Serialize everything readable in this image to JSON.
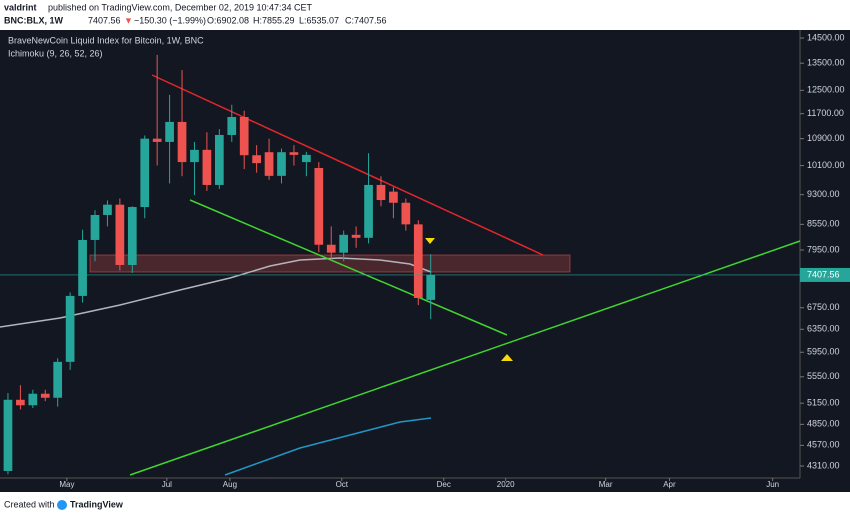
{
  "header": {
    "author": "valdrint",
    "published": "published on TradingView.com, December 02, 2019 10:47:34 CET",
    "symbol": "BNC:BLX, 1W",
    "last": "7407.56",
    "arrow": "▼",
    "change": "−150.30 (−1.99%)",
    "open": "O:6902.08",
    "high": "H:7855.29",
    "low": "L:6535.07",
    "close": "C:7407.56"
  },
  "chart_data": {
    "type": "candlestick",
    "title": "BraveNewCoin Liquid Index for Bitcoin, 1W, BNC",
    "indicator": "Ichimoku (9, 26, 52, 26)",
    "x": [
      0,
      1,
      2,
      3,
      4,
      5,
      6,
      7,
      8,
      9,
      10,
      11,
      12,
      13,
      14,
      15,
      16,
      17,
      18,
      19,
      20,
      21,
      22,
      23,
      24,
      25,
      26,
      27,
      28,
      29,
      30,
      31,
      32,
      33,
      34
    ],
    "series": [
      {
        "up_color": "#26a69a",
        "down_color": "#ef5350",
        "open": [
          4250,
          5200,
          5120,
          5290,
          5230,
          5790,
          6980,
          8180,
          8780,
          9040,
          7620,
          8980,
          10900,
          10800,
          11430,
          10200,
          10560,
          9560,
          11015,
          11590,
          10400,
          10490,
          9810,
          10490,
          10200,
          10030,
          8070,
          7890,
          8300,
          8230,
          9560,
          9380,
          9090,
          8550,
          6902.08
        ],
        "high": [
          5300,
          5420,
          5350,
          5350,
          5850,
          7050,
          8420,
          8900,
          9150,
          9200,
          9000,
          11000,
          13820,
          12340,
          13240,
          10800,
          11100,
          11200,
          12000,
          11800,
          10700,
          10900,
          10600,
          10700,
          10500,
          10200,
          8500,
          8400,
          8500,
          10460,
          9800,
          9500,
          9200,
          8650,
          7855.29
        ],
        "low": [
          4210,
          5060,
          5080,
          5180,
          5100,
          5660,
          6850,
          7700,
          8500,
          7500,
          7450,
          8700,
          10100,
          9600,
          9800,
          9290,
          9400,
          9450,
          10800,
          10000,
          9900,
          9700,
          9600,
          10100,
          9800,
          7900,
          7750,
          7700,
          8000,
          8100,
          9000,
          8700,
          8400,
          6800,
          6535.07
        ],
        "close": [
          5200,
          5120,
          5290,
          5230,
          5790,
          6980,
          8180,
          8780,
          9040,
          7620,
          8980,
          10900,
          10800,
          11430,
          10200,
          10560,
          9560,
          11015,
          11590,
          10400,
          10170,
          9810,
          10490,
          10410,
          10410,
          8070,
          7890,
          8300,
          8230,
          9560,
          9160,
          9090,
          8550,
          6940,
          7407.56
        ]
      }
    ],
    "xlim": [
      -0.64,
      63.7
    ],
    "xticks": [
      {
        "value": 4.74,
        "label": "May"
      },
      {
        "value": 12.78,
        "label": "Jul"
      },
      {
        "value": 17.85,
        "label": "Aug"
      },
      {
        "value": 26.85,
        "label": "Oct"
      },
      {
        "value": 35.05,
        "label": "Dec"
      },
      {
        "value": 40.03,
        "label": "2020"
      },
      {
        "value": 48.07,
        "label": "Mar"
      },
      {
        "value": 53.2,
        "label": "Apr"
      },
      {
        "value": 61.5,
        "label": "Jun"
      }
    ],
    "ylim": [
      4166,
      14832
    ],
    "log_scale": true,
    "grid": false,
    "yticks": [
      {
        "value": 14500,
        "label": "14500.00"
      },
      {
        "value": 13500,
        "label": "13500.00"
      },
      {
        "value": 12500,
        "label": "12500.00"
      },
      {
        "value": 11700,
        "label": "11700.00"
      },
      {
        "value": 10900,
        "label": "10900.00"
      },
      {
        "value": 10100,
        "label": "10100.00"
      },
      {
        "value": 9300,
        "label": "9300.00"
      },
      {
        "value": 8550,
        "label": "8550.00"
      },
      {
        "value": 7950,
        "label": "7950.00"
      },
      {
        "value": 6750,
        "label": "6750.00"
      },
      {
        "value": 6350,
        "label": "6350.00"
      },
      {
        "value": 5950,
        "label": "5950.00"
      },
      {
        "value": 5550,
        "label": "5550.00"
      },
      {
        "value": 5150,
        "label": "5150.00"
      },
      {
        "value": 4850,
        "label": "4850.00"
      },
      {
        "value": 4570,
        "label": "4570.00"
      },
      {
        "value": 4310,
        "label": "4310.00"
      }
    ]
  },
  "footer": {
    "created": "Created with",
    "brand": "TradingView"
  }
}
